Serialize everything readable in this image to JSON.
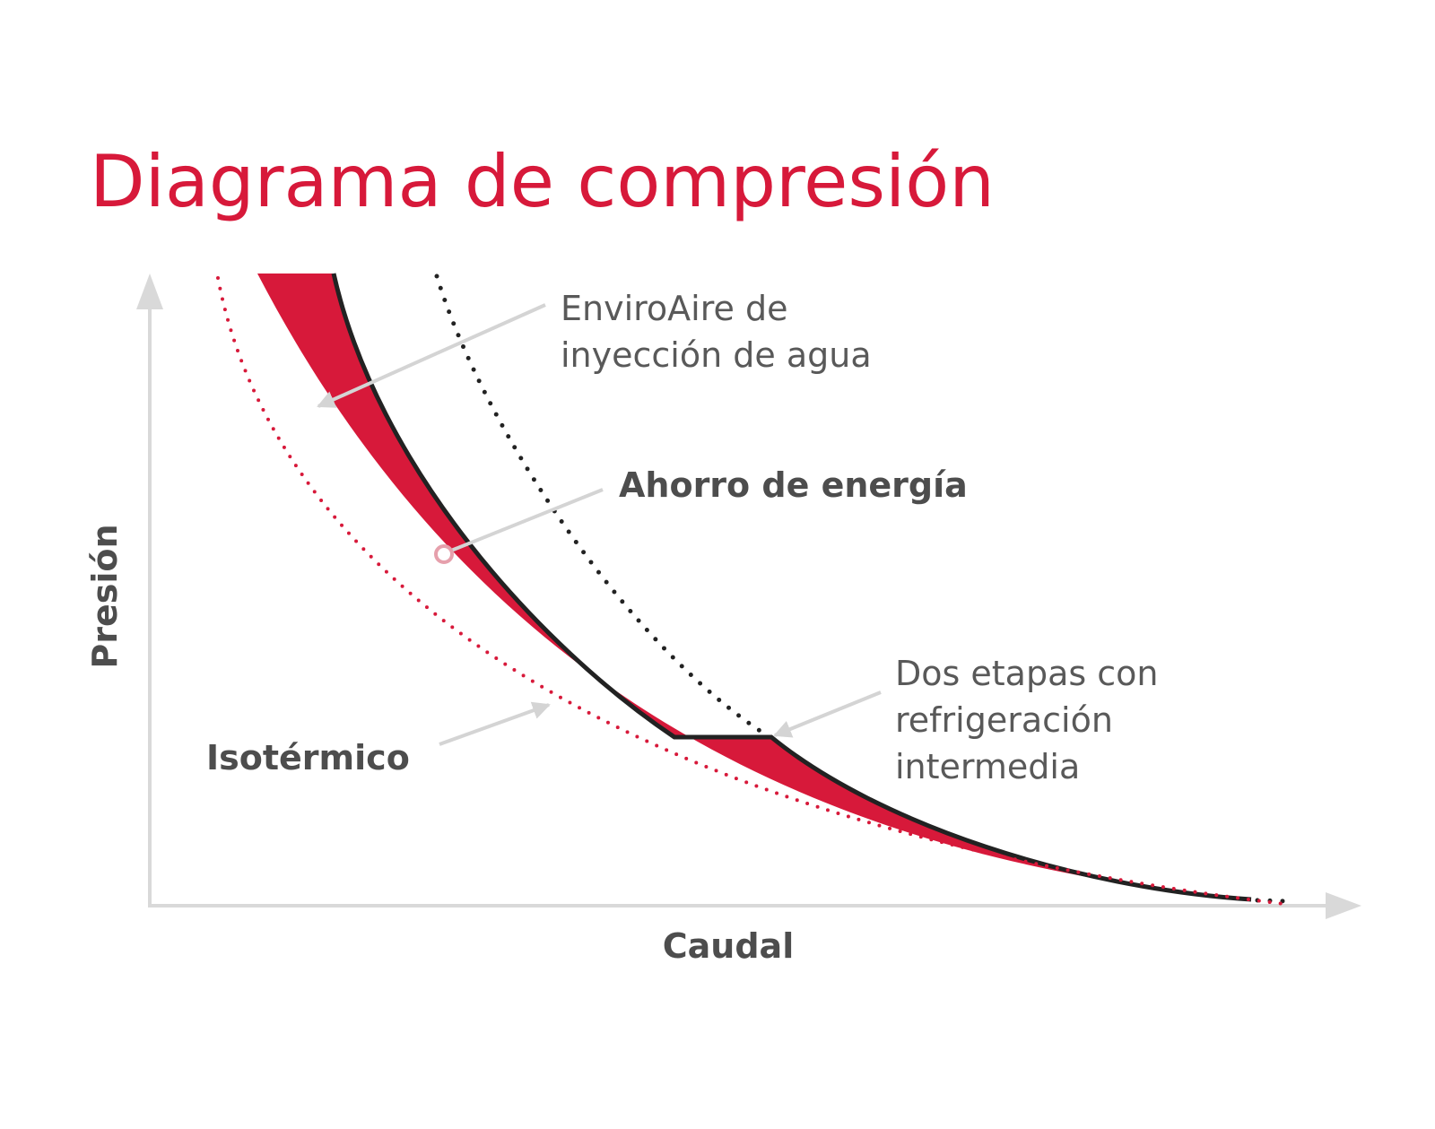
{
  "title": "Diagrama de compresión",
  "y_axis_label": "Presión",
  "x_axis_label": "Caudal",
  "annotations": {
    "water_injection": [
      "EnviroAire de",
      "inyección de agua"
    ],
    "energy_saving": "Ahorro de energía",
    "two_stage": [
      "Dos etapas con",
      "refrigeración",
      "intermedia"
    ],
    "isothermal": "Isotérmico"
  }
}
